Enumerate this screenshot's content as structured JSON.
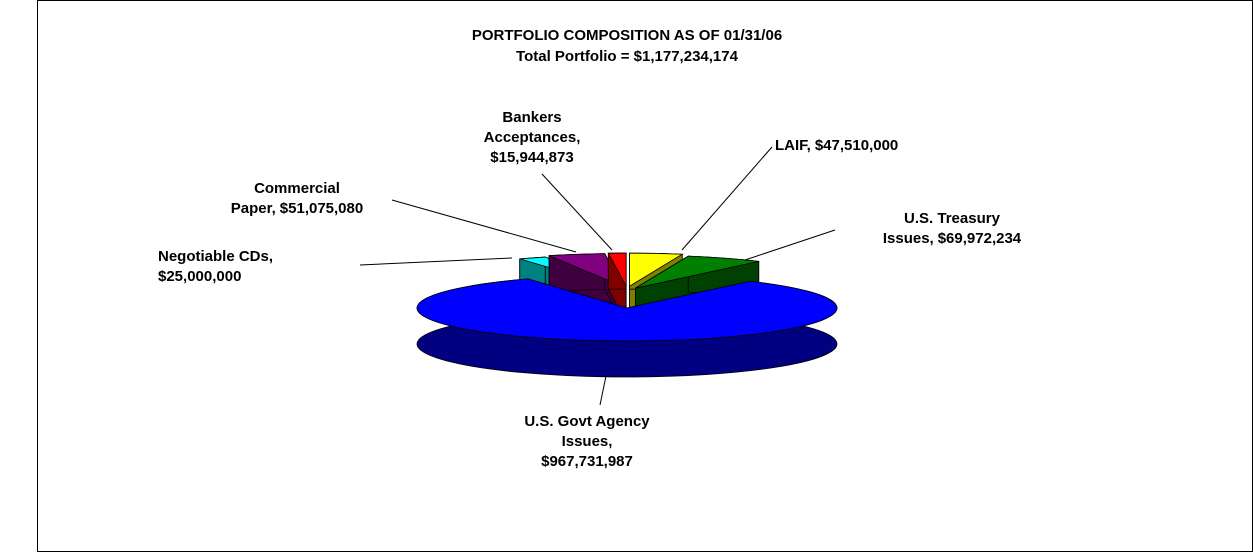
{
  "chart_data": {
    "type": "pie3d",
    "title": "PORTFOLIO COMPOSITION AS OF 01/31/06",
    "subtitle": "Total Portfolio = $1,177,234,174",
    "categories": [
      [
        "LAIF,"
      ],
      [
        "U.S. Treasury",
        "Issues,"
      ],
      [
        "U.S. Govt Agency",
        "Issues,"
      ],
      [
        "Negotiable CDs,"
      ],
      [
        "Commercial",
        "Paper,"
      ],
      [
        "Bankers",
        "Acceptances,"
      ]
    ],
    "values": [
      47510000,
      69972234,
      967731987,
      25000000,
      51075080,
      15944873
    ],
    "value_labels": [
      "$47,510,000",
      "$69,972,234",
      "$967,731,987",
      "$25,000,000",
      "$51,075,080",
      "$15,944,873"
    ],
    "colors": [
      "#ffff00",
      "#008000",
      "#0000ff",
      "#00ffff",
      "#800080",
      "#ff0000"
    ]
  }
}
